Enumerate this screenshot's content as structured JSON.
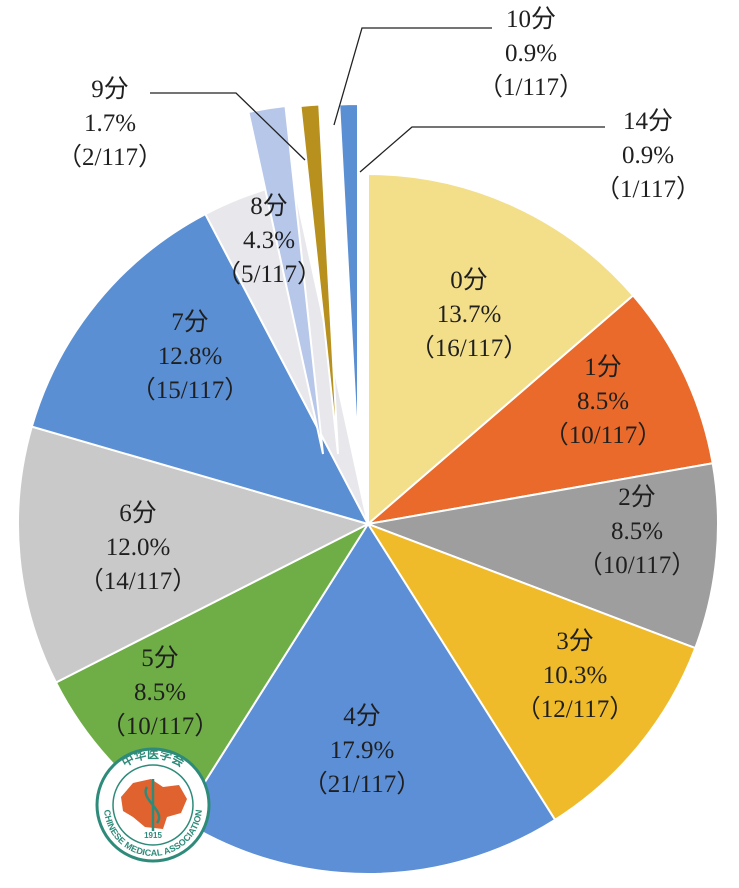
{
  "chart_data": {
    "type": "pie",
    "total": 117,
    "slices": [
      {
        "label": "0分",
        "percent": "13.7%",
        "count": "（16/117）",
        "value": 16,
        "color": "#F3DE8A"
      },
      {
        "label": "1分",
        "percent": "8.5%",
        "count": "（10/117）",
        "value": 10,
        "color": "#E96A2A"
      },
      {
        "label": "2分",
        "percent": "8.5%",
        "count": "（10/117）",
        "value": 10,
        "color": "#9E9E9E"
      },
      {
        "label": "3分",
        "percent": "10.3%",
        "count": "（12/117）",
        "value": 12,
        "color": "#EFBB2A"
      },
      {
        "label": "4分",
        "percent": "17.9%",
        "count": "（21/117）",
        "value": 21,
        "color": "#5D8FD6"
      },
      {
        "label": "5分",
        "percent": "8.5%",
        "count": "（10/117）",
        "value": 10,
        "color": "#6FAE46"
      },
      {
        "label": "6分",
        "percent": "12.0%",
        "count": "（14/117）",
        "value": 14,
        "color": "#C9C9C9"
      },
      {
        "label": "7分",
        "percent": "12.8%",
        "count": "（15/117）",
        "value": 15,
        "color": "#5B8FD3"
      },
      {
        "label": "8分",
        "percent": "4.3%",
        "count": "（5/117）",
        "value": 5,
        "color": "#E8E8EC"
      },
      {
        "label": "9分",
        "percent": "1.7%",
        "count": "（2/117）",
        "value": 2,
        "color": "#B7C7EA"
      },
      {
        "label": "10分",
        "percent": "0.9%",
        "count": "（1/117）",
        "value": 1,
        "color": "#B8901E"
      },
      {
        "label": "14分",
        "percent": "0.9%",
        "count": "（1/117）",
        "value": 1,
        "color": "#5B8FD3"
      }
    ]
  },
  "watermark": {
    "top_text": "中华医学会",
    "bottom_text": "CHINESE MEDICAL ASSOCIATION",
    "year": "1915"
  }
}
